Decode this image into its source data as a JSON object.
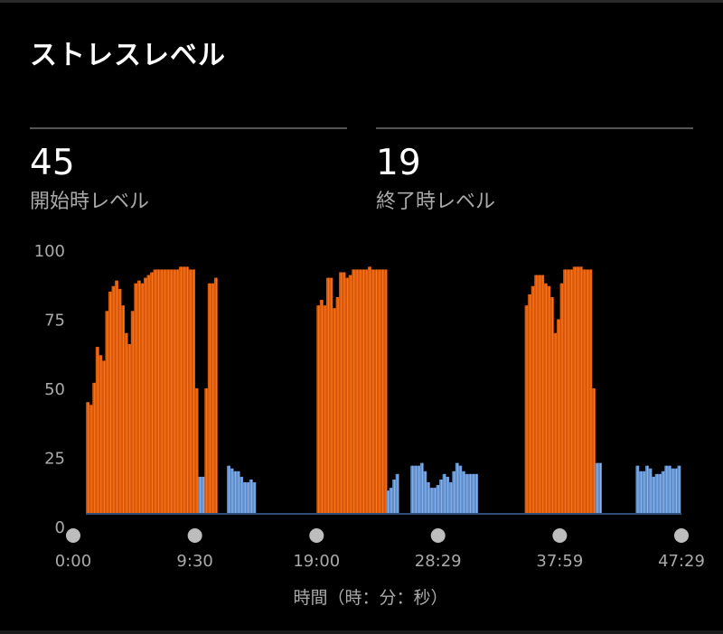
{
  "title": "ストレスレベル",
  "stats": [
    {
      "value": "45",
      "label": "開始時レベル"
    },
    {
      "value": "19",
      "label": "終了時レベル"
    }
  ],
  "chart_data": {
    "type": "bar",
    "xlabel": "時間（時：分：秒）",
    "ylabel": "",
    "ylim": [
      0,
      100
    ],
    "yticks": [
      "100",
      "75",
      "50",
      "25",
      "0"
    ],
    "ytick_values": [
      100,
      75,
      50,
      25,
      0
    ],
    "xticks": [
      "0:00",
      "9:30",
      "19:00",
      "28:29",
      "37:59",
      "47:29"
    ],
    "xtick_seconds": [
      0,
      570,
      1140,
      1709,
      2279,
      2849
    ],
    "interval_seconds": 15,
    "grid": false,
    "colors": {
      "high": "#d9580c",
      "high_light": "#ff7a1a",
      "low": "#5f8fcf",
      "low_light": "#8fb6e8",
      "baseline": "#2d4f7a",
      "tick_dot": "#bdbdbd"
    },
    "low_threshold": 25,
    "segments": [
      {
        "start_seconds": 60,
        "values": [
          45,
          44,
          52,
          65,
          62,
          60,
          78,
          85,
          87,
          89,
          86,
          80,
          70,
          66,
          78,
          88,
          89,
          88,
          90,
          91,
          92,
          93,
          93,
          93,
          93,
          93,
          93,
          93,
          93,
          94,
          94,
          94,
          93,
          93,
          50,
          18,
          18,
          50,
          88,
          88,
          90
        ]
      },
      {
        "start_seconds": 720,
        "values": [
          22,
          21,
          20,
          20,
          18,
          16,
          16,
          17,
          16
        ]
      },
      {
        "start_seconds": 1140,
        "values": [
          80,
          82,
          80,
          90,
          90,
          79,
          83,
          92,
          92,
          90,
          91,
          93,
          93,
          93,
          93,
          93,
          94,
          93,
          93,
          93,
          93,
          93
        ]
      },
      {
        "start_seconds": 1465,
        "values": [
          13,
          14,
          17,
          19
        ]
      },
      {
        "start_seconds": 1580,
        "values": [
          22,
          22,
          22,
          23,
          20,
          16,
          14,
          14,
          15,
          17,
          19,
          18,
          16,
          20,
          23,
          22,
          20,
          19,
          19,
          19,
          19
        ]
      },
      {
        "start_seconds": 2115,
        "values": [
          80,
          84,
          87,
          91,
          91,
          91,
          88,
          87,
          83,
          70,
          75,
          88,
          93,
          93,
          93,
          94,
          94,
          94,
          93,
          93,
          93,
          50,
          23,
          23
        ]
      },
      {
        "start_seconds": 2635,
        "values": [
          22,
          20,
          20,
          22,
          21,
          18,
          19,
          19,
          20,
          22,
          22,
          21,
          21,
          22
        ]
      }
    ]
  }
}
